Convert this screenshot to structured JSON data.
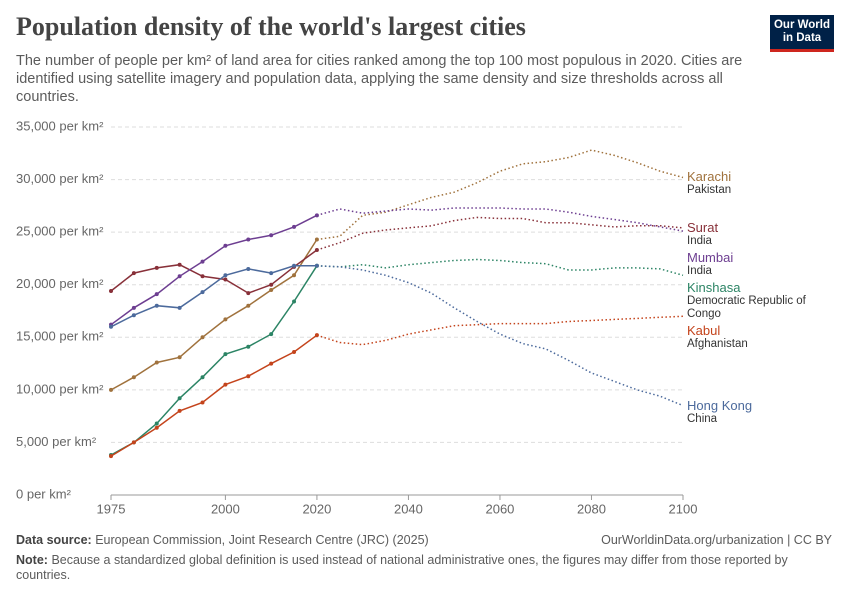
{
  "header": {
    "title": "Population density of the world's largest cities",
    "subtitle": "The number of people per km² of land area for cities ranked among the top 100 most populous in 2020. Cities are identified using satellite imagery and population data, applying the same density and size thresholds across all countries.",
    "logo": [
      "Our World",
      "in Data"
    ]
  },
  "chart_data": {
    "type": "line",
    "x": [
      1975,
      1980,
      1985,
      1990,
      1995,
      2000,
      2005,
      2010,
      2015,
      2020,
      2025,
      2030,
      2035,
      2040,
      2045,
      2050,
      2055,
      2060,
      2065,
      2070,
      2075,
      2080,
      2085,
      2090,
      2095,
      2100
    ],
    "projection_start": 2020,
    "xlim": [
      1975,
      2100
    ],
    "xticks": [
      1975,
      2000,
      2020,
      2040,
      2060,
      2080,
      2100
    ],
    "ylim": [
      0,
      35000
    ],
    "yticks": [
      {
        "value": 0,
        "label": "0 per km²"
      },
      {
        "value": 5000,
        "label": "5,000 per km²"
      },
      {
        "value": 10000,
        "label": "10,000 per km²"
      },
      {
        "value": 15000,
        "label": "15,000 per km²"
      },
      {
        "value": 20000,
        "label": "20,000 per km²"
      },
      {
        "value": 25000,
        "label": "25,000 per km²"
      },
      {
        "value": 30000,
        "label": "30,000 per km²"
      },
      {
        "value": 35000,
        "label": "35,000 per km²"
      }
    ],
    "grid": true,
    "series": [
      {
        "name": "Karachi",
        "country": "Pakistan",
        "color": "#a0723d",
        "values": [
          10000,
          11200,
          12600,
          13100,
          15000,
          16700,
          18000,
          19500,
          20900,
          24300,
          24600,
          26600,
          26900,
          27600,
          28300,
          28800,
          29700,
          30800,
          31500,
          31700,
          32100,
          32800,
          32300,
          31600,
          30800,
          30200
        ]
      },
      {
        "name": "Surat",
        "country": "India",
        "color": "#883039",
        "values": [
          19400,
          21100,
          21600,
          21900,
          20800,
          20500,
          19200,
          20000,
          21700,
          23300,
          24000,
          24900,
          25200,
          25400,
          25600,
          26100,
          26400,
          26300,
          26300,
          25900,
          25900,
          25700,
          25500,
          25600,
          25600,
          25400
        ]
      },
      {
        "name": "Mumbai",
        "country": "India",
        "color": "#6d3e91",
        "values": [
          16200,
          17800,
          19100,
          20800,
          22200,
          23700,
          24300,
          24700,
          25500,
          26600,
          27200,
          26800,
          27000,
          27200,
          27100,
          27300,
          27300,
          27300,
          27200,
          27200,
          26900,
          26500,
          26200,
          25900,
          25500,
          25100
        ]
      },
      {
        "name": "Kinshasa",
        "country": "Democratic Republic of Congo",
        "color": "#2c8465",
        "values": [
          3800,
          5000,
          6800,
          9200,
          11200,
          13400,
          14100,
          15300,
          18400,
          21800,
          21700,
          21900,
          21600,
          21900,
          22100,
          22300,
          22400,
          22300,
          22100,
          22000,
          21400,
          21400,
          21600,
          21600,
          21500,
          20900
        ]
      },
      {
        "name": "Kabul",
        "country": "Afghanistan",
        "color": "#c4441c",
        "values": [
          3700,
          5000,
          6400,
          8000,
          8800,
          10500,
          11300,
          12500,
          13600,
          15200,
          14500,
          14300,
          14700,
          15300,
          15700,
          16100,
          16200,
          16300,
          16300,
          16300,
          16500,
          16600,
          16700,
          16800,
          16900,
          17000
        ]
      },
      {
        "name": "Hong Kong",
        "country": "China",
        "color": "#4c6a9c",
        "values": [
          16000,
          17100,
          18000,
          17800,
          19300,
          20900,
          21500,
          21100,
          21800,
          21800,
          21700,
          21400,
          20900,
          20200,
          19200,
          17800,
          16500,
          15300,
          14400,
          13900,
          12800,
          11600,
          10800,
          10000,
          9400,
          8500
        ]
      }
    ]
  },
  "footer": {
    "source_label": "Data source:",
    "source": "European Commission, Joint Research Centre (JRC) (2025)",
    "url": "OurWorldinData.org/urbanization | CC BY",
    "note_label": "Note:",
    "note": "Because a standardized global definition is used instead of national administrative ones, the figures may differ from those reported by countries."
  }
}
